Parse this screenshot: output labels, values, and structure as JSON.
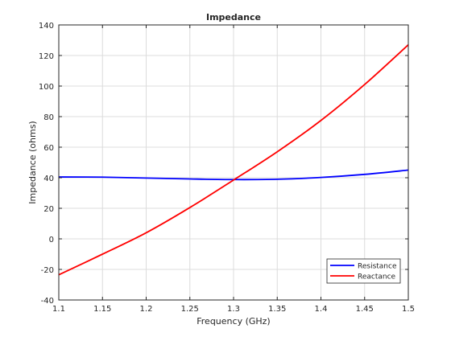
{
  "chart_data": {
    "type": "line",
    "title": "Impedance",
    "xlabel": "Frequency (GHz)",
    "ylabel": "Impedance (ohms)",
    "xlim": [
      1.1,
      1.5
    ],
    "ylim": [
      -40,
      140
    ],
    "xticks": [
      "1.1",
      "1.15",
      "1.2",
      "1.25",
      "1.3",
      "1.35",
      "1.4",
      "1.45",
      "1.5"
    ],
    "yticks": [
      "-40",
      "-20",
      "0",
      "20",
      "40",
      "60",
      "80",
      "100",
      "120",
      "140"
    ],
    "grid": true,
    "legend_position": "bottom-right",
    "x": [
      1.1,
      1.15,
      1.2,
      1.25,
      1.3,
      1.35,
      1.4,
      1.45,
      1.5
    ],
    "series": [
      {
        "name": "Resistance",
        "color": "#0000ff",
        "values": [
          40.5,
          40.4,
          39.8,
          39.2,
          38.8,
          39.0,
          40.2,
          42.2,
          45.0
        ]
      },
      {
        "name": "Reactance",
        "color": "#ff0000",
        "values": [
          -23.5,
          -10.0,
          4.0,
          20.5,
          38.5,
          57.0,
          77.5,
          101.0,
          127.0
        ]
      }
    ]
  }
}
